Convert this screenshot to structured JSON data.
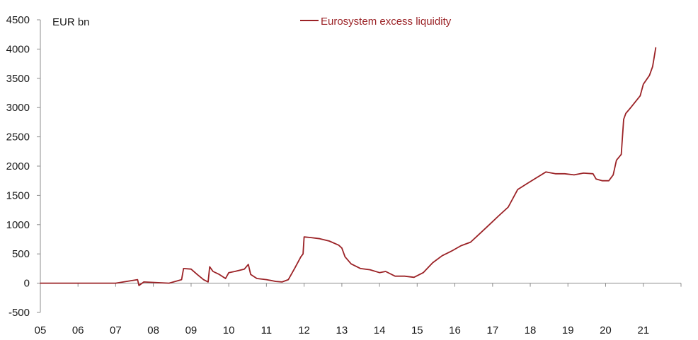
{
  "chart_data": {
    "type": "line",
    "unit_label": "EUR bn",
    "legend_position": "top-center",
    "grid": false,
    "colors": {
      "series": "#9B2226",
      "axis": "#8c8c8c",
      "text": "#1a1a1a"
    },
    "ylim": [
      -500,
      4500
    ],
    "yticks": [
      -500,
      0,
      500,
      1000,
      1500,
      2000,
      2500,
      3000,
      3500,
      4000,
      4500
    ],
    "ytick_labels": [
      "-500",
      "0",
      "500",
      "1000",
      "1500",
      "2000",
      "2500",
      "3000",
      "3500",
      "4000",
      "4500"
    ],
    "xlim": [
      "2005-01-01",
      "2022-01-01"
    ],
    "xticks": [
      "2005-01-01",
      "2006-01-01",
      "2007-01-01",
      "2008-01-01",
      "2009-01-01",
      "2010-01-01",
      "2011-01-01",
      "2012-01-01",
      "2013-01-01",
      "2014-01-01",
      "2015-01-01",
      "2016-01-01",
      "2017-01-01",
      "2018-01-01",
      "2019-01-01",
      "2020-01-01",
      "2021-01-01"
    ],
    "xtick_labels": [
      "05",
      "06",
      "07",
      "08",
      "09",
      "10",
      "11",
      "12",
      "13",
      "14",
      "15",
      "16",
      "17",
      "18",
      "19",
      "20",
      "21"
    ],
    "series": [
      {
        "name": "Eurosystem excess liquidity",
        "x": [
          "2005-01-01",
          "2006-01-01",
          "2007-01-01",
          "2007-08-01",
          "2007-08-15",
          "2007-10-01",
          "2008-06-01",
          "2008-10-01",
          "2008-10-20",
          "2009-01-01",
          "2009-03-01",
          "2009-05-01",
          "2009-06-15",
          "2009-06-30",
          "2009-08-01",
          "2009-10-01",
          "2009-12-01",
          "2010-01-01",
          "2010-03-01",
          "2010-06-01",
          "2010-07-10",
          "2010-08-01",
          "2010-10-01",
          "2011-01-01",
          "2011-04-01",
          "2011-06-01",
          "2011-08-01",
          "2011-10-01",
          "2011-12-01",
          "2011-12-22",
          "2012-01-01",
          "2012-03-01",
          "2012-06-01",
          "2012-09-01",
          "2012-12-01",
          "2013-01-01",
          "2013-02-01",
          "2013-04-01",
          "2013-07-01",
          "2013-10-01",
          "2014-01-01",
          "2014-03-01",
          "2014-06-01",
          "2014-09-01",
          "2014-12-01",
          "2015-03-01",
          "2015-06-01",
          "2015-09-01",
          "2015-12-01",
          "2016-03-01",
          "2016-06-01",
          "2016-09-01",
          "2016-12-01",
          "2017-03-01",
          "2017-06-01",
          "2017-09-01",
          "2017-12-01",
          "2018-03-01",
          "2018-06-01",
          "2018-09-01",
          "2018-12-01",
          "2019-03-01",
          "2019-06-01",
          "2019-09-01",
          "2019-10-01",
          "2019-12-01",
          "2020-02-01",
          "2020-03-15",
          "2020-04-15",
          "2020-06-01",
          "2020-06-24",
          "2020-07-15",
          "2020-09-01",
          "2020-12-01",
          "2021-01-01",
          "2021-03-01",
          "2021-04-01",
          "2021-05-01"
        ],
        "y": [
          0,
          0,
          0,
          60,
          -40,
          20,
          0,
          60,
          250,
          240,
          150,
          60,
          20,
          280,
          200,
          150,
          80,
          180,
          200,
          240,
          320,
          150,
          80,
          60,
          30,
          20,
          60,
          250,
          450,
          500,
          790,
          780,
          760,
          720,
          650,
          600,
          450,
          330,
          250,
          230,
          180,
          200,
          120,
          120,
          100,
          180,
          350,
          470,
          550,
          640,
          700,
          850,
          1000,
          1150,
          1300,
          1600,
          1700,
          1800,
          1900,
          1870,
          1870,
          1850,
          1880,
          1870,
          1780,
          1750,
          1750,
          1850,
          2100,
          2200,
          2800,
          2900,
          3000,
          3200,
          3400,
          3550,
          3700,
          4020
        ]
      }
    ]
  }
}
